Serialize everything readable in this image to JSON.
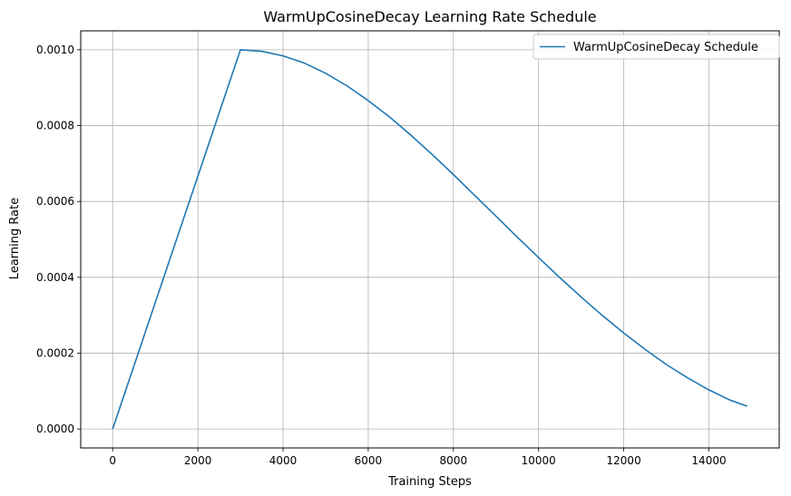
{
  "chart_data": {
    "type": "line",
    "title": "WarmUpCosineDecay Learning Rate Schedule",
    "xlabel": "Training Steps",
    "ylabel": "Learning Rate",
    "xlim": [
      -750,
      15650
    ],
    "ylim": [
      -5e-05,
      0.00105
    ],
    "xticks": [
      0,
      2000,
      4000,
      6000,
      8000,
      10000,
      12000,
      14000
    ],
    "xtick_labels": [
      "0",
      "2000",
      "4000",
      "6000",
      "8000",
      "10000",
      "12000",
      "14000"
    ],
    "yticks": [
      0,
      0.0002,
      0.0004,
      0.0006,
      0.0008,
      0.001
    ],
    "ytick_labels": [
      "0.0000",
      "0.0002",
      "0.0004",
      "0.0006",
      "0.0008",
      "0.0010"
    ],
    "grid": true,
    "legend_position": "top-right",
    "series": [
      {
        "name": "WarmUpCosineDecay Schedule",
        "color": "#1f77b4",
        "x": [
          0,
          3000,
          3500,
          4000,
          4500,
          5000,
          5500,
          6000,
          6500,
          7000,
          7500,
          8000,
          8500,
          9000,
          9500,
          10000,
          10500,
          11000,
          11500,
          12000,
          12500,
          13000,
          13500,
          14000,
          14500,
          14900
        ],
        "y": [
          0,
          0.001,
          0.000996,
          0.000984,
          0.000965,
          0.000938,
          0.000905,
          0.000866,
          0.000823,
          0.000775,
          0.000724,
          0.000671,
          0.000616,
          0.000561,
          0.000506,
          0.000452,
          0.000399,
          0.000348,
          0.000299,
          0.000253,
          0.00021,
          0.00017,
          0.000135,
          0.000103,
          7.6e-05,
          6e-05
        ]
      }
    ]
  }
}
